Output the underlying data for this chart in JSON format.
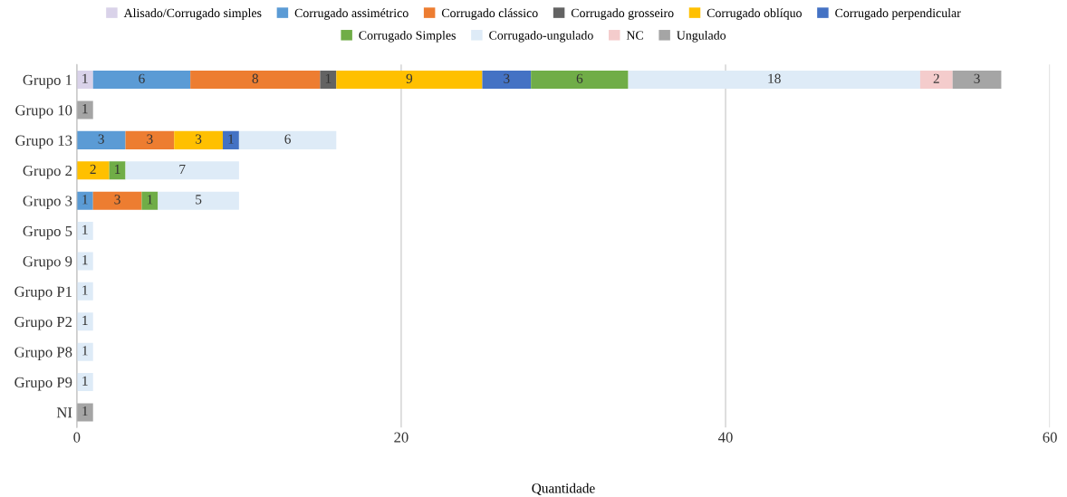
{
  "chart_data": {
    "type": "bar",
    "orientation": "horizontal",
    "stacked": true,
    "xlabel": "Quantidade",
    "categories": [
      "Grupo 1",
      "Grupo 10",
      "Grupo 13",
      "Grupo 2",
      "Grupo 3",
      "Grupo 5",
      "Grupo 9",
      "Grupo P1",
      "Grupo P2",
      "Grupo P8",
      "Grupo P9",
      "NI"
    ],
    "series": [
      {
        "name": "Alisado/Corrugado simples",
        "color": "#d9d2e9",
        "values": [
          1,
          null,
          null,
          null,
          null,
          null,
          null,
          null,
          null,
          null,
          null,
          null
        ]
      },
      {
        "name": "Corrugado assimétrico",
        "color": "#5b9bd5",
        "values": [
          6,
          null,
          3,
          null,
          1,
          null,
          null,
          null,
          null,
          null,
          null,
          null
        ]
      },
      {
        "name": "Corrugado clássico",
        "color": "#ed7d31",
        "values": [
          8,
          null,
          3,
          null,
          3,
          null,
          null,
          null,
          null,
          null,
          null,
          null
        ]
      },
      {
        "name": "Corrugado grosseiro",
        "color": "#636363",
        "values": [
          1,
          null,
          null,
          null,
          null,
          null,
          null,
          null,
          null,
          null,
          null,
          null
        ]
      },
      {
        "name": "Corrugado oblíquo",
        "color": "#ffc000",
        "values": [
          9,
          null,
          3,
          2,
          null,
          null,
          null,
          null,
          null,
          null,
          null,
          null
        ]
      },
      {
        "name": "Corrugado perpendicular",
        "color": "#4472c4",
        "values": [
          3,
          null,
          1,
          null,
          null,
          null,
          null,
          null,
          null,
          null,
          null,
          null
        ]
      },
      {
        "name": "Corrugado Simples",
        "color": "#70ad47",
        "values": [
          6,
          null,
          null,
          1,
          1,
          null,
          null,
          null,
          null,
          null,
          null,
          null
        ]
      },
      {
        "name": "Corrugado-ungulado",
        "color": "#deebf7",
        "values": [
          18,
          null,
          6,
          7,
          5,
          1,
          1,
          1,
          1,
          1,
          1,
          null
        ]
      },
      {
        "name": "NC",
        "color": "#f4cccc",
        "values": [
          2,
          null,
          null,
          null,
          null,
          null,
          null,
          null,
          null,
          null,
          null,
          null
        ]
      },
      {
        "name": "Ungulado",
        "color": "#a5a5a5",
        "values": [
          3,
          1,
          null,
          null,
          null,
          null,
          null,
          null,
          null,
          null,
          null,
          1
        ]
      }
    ],
    "xlim": [
      0,
      60
    ],
    "xticks": [
      0,
      20,
      40,
      60
    ],
    "grid": "x",
    "legend": "top",
    "data_labels": true
  }
}
